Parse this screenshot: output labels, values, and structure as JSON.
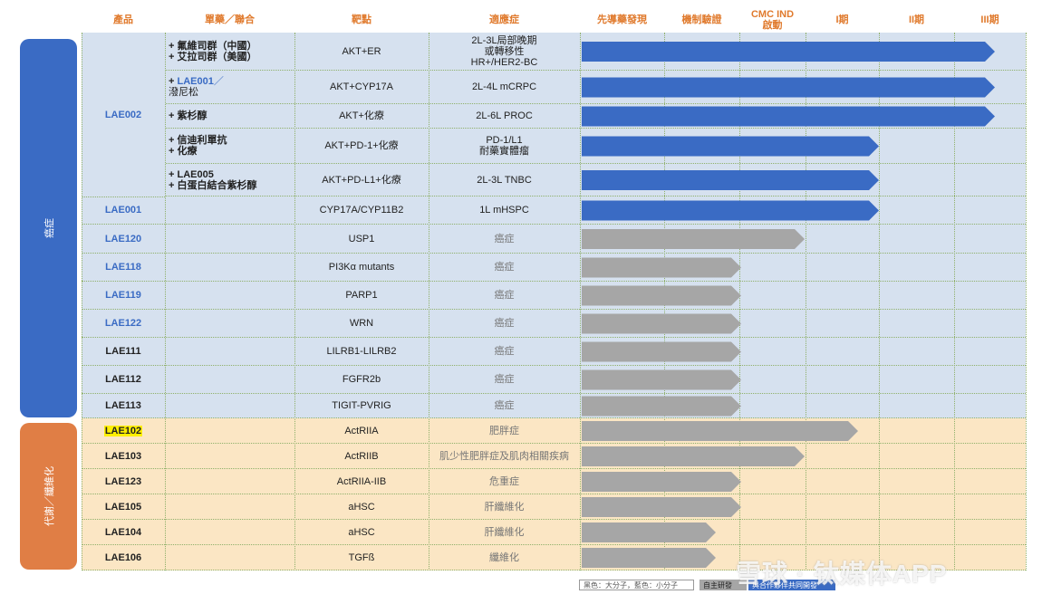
{
  "headers": {
    "product": "產品",
    "combo": "單藥／聯合",
    "target": "靶點",
    "indication": "適應症",
    "discovery": "先導藥發現",
    "mechanism": "機制驗證",
    "cmc_ind": "CMC IND\n啟動",
    "phase1": "I期",
    "phase2": "II期",
    "phase3": "III期"
  },
  "categories": {
    "oncology": "癌症",
    "metabolic": "代謝／纖維化"
  },
  "colors": {
    "blue_arrow": "#3a6bc4",
    "gray_arrow": "#a6a6a6",
    "onc_bg": "#d6e1ef",
    "meta_bg": "#fbe6c4",
    "onc_tab": "#3a6bc4",
    "meta_tab": "#e07e45",
    "header": "#e07a2d"
  },
  "rows": [
    {
      "product": "",
      "product_color": "",
      "combo": [
        {
          "t": "+ 氟維司群（中國）"
        },
        {
          "t": "+ 艾拉司群（美國）"
        }
      ],
      "target": "AKT+ER",
      "indication": "2L-3L局部晚期\n或轉移性\nHR+/HER2-BC",
      "ind_gray": false,
      "progress": "III期",
      "arrow": "blue"
    },
    {
      "product": "",
      "product_color": "",
      "combo": [
        {
          "t": "+ ",
          "b": "LAE001",
          "tail": "／",
          "blue": true
        },
        {
          "t": "潑尼松"
        }
      ],
      "target": "AKT+CYP17A",
      "indication": "2L-4L mCRPC",
      "ind_gray": false,
      "progress": "III期",
      "arrow": "blue"
    },
    {
      "product": "",
      "product_color": "",
      "combo": [
        {
          "t": "+ 紫杉醇"
        }
      ],
      "target": "AKT+化療",
      "indication": "2L-6L PROC",
      "ind_gray": false,
      "progress": "III期",
      "arrow": "blue"
    },
    {
      "product": "",
      "product_color": "",
      "combo": [
        {
          "t": "+ 信迪利單抗"
        },
        {
          "t": "+ 化療"
        }
      ],
      "target": "AKT+PD-1+化療",
      "indication": "PD-1/L1\n耐藥實體瘤",
      "ind_gray": false,
      "progress": "II期",
      "arrow": "blue"
    },
    {
      "product": "",
      "product_color": "",
      "combo": [
        {
          "t": "+ ",
          "b": "LAE005"
        },
        {
          "t": "+ 白蛋白結合紫杉醇"
        }
      ],
      "target": "AKT+PD-L1+化療",
      "indication": "2L-3L TNBC",
      "ind_gray": false,
      "progress": "II期",
      "arrow": "blue"
    },
    {
      "product": "LAE001",
      "product_color": "blue",
      "combo": [],
      "target": "CYP17A/CYP11B2",
      "indication": "1L mHSPC",
      "ind_gray": false,
      "progress": "II期",
      "arrow": "blue"
    },
    {
      "product": "LAE120",
      "product_color": "blue",
      "combo": [],
      "target": "USP1",
      "indication": "癌症",
      "ind_gray": true,
      "progress": "CMC IND 啟動",
      "arrow": "gray"
    },
    {
      "product": "LAE118",
      "product_color": "blue",
      "combo": [],
      "target": "PI3Kα mutants",
      "indication": "癌症",
      "ind_gray": true,
      "progress": "機制驗證",
      "arrow": "gray"
    },
    {
      "product": "LAE119",
      "product_color": "blue",
      "combo": [],
      "target": "PARP1",
      "indication": "癌症",
      "ind_gray": true,
      "progress": "機制驗證",
      "arrow": "gray"
    },
    {
      "product": "LAE122",
      "product_color": "blue",
      "combo": [],
      "target": "WRN",
      "indication": "癌症",
      "ind_gray": true,
      "progress": "機制驗證",
      "arrow": "gray"
    },
    {
      "product": "LAE111",
      "product_color": "black",
      "combo": [],
      "target": "LILRB1-LILRB2",
      "indication": "癌症",
      "ind_gray": true,
      "progress": "機制驗證",
      "arrow": "gray"
    },
    {
      "product": "LAE112",
      "product_color": "black",
      "combo": [],
      "target": "FGFR2b",
      "indication": "癌症",
      "ind_gray": true,
      "progress": "機制驗證",
      "arrow": "gray"
    },
    {
      "product": "LAE113",
      "product_color": "black",
      "combo": [],
      "target": "TIGIT-PVRIG",
      "indication": "癌症",
      "ind_gray": true,
      "progress": "機制驗證",
      "arrow": "gray"
    },
    {
      "product": "LAE102",
      "product_color": "highlight",
      "combo": [],
      "target": "ActRIIA",
      "indication": "肥胖症",
      "ind_gray": true,
      "progress": "I期",
      "arrow": "gray"
    },
    {
      "product": "LAE103",
      "product_color": "black",
      "combo": [],
      "target": "ActRIIB",
      "indication": "肌少性肥胖症及肌肉相關疾病",
      "ind_gray": true,
      "progress": "CMC IND 啟動",
      "arrow": "gray"
    },
    {
      "product": "LAE123",
      "product_color": "black",
      "combo": [],
      "target": "ActRIIA-IIB",
      "indication": "危重症",
      "ind_gray": true,
      "progress": "機制驗證",
      "arrow": "gray"
    },
    {
      "product": "LAE105",
      "product_color": "black",
      "combo": [],
      "target": "aHSC",
      "indication": "肝纖維化",
      "ind_gray": true,
      "progress": "機制驗證",
      "arrow": "gray"
    },
    {
      "product": "LAE104",
      "product_color": "black",
      "combo": [],
      "target": "aHSC",
      "indication": "肝纖維化",
      "ind_gray": true,
      "progress": "先導藥發現",
      "arrow": "gray"
    },
    {
      "product": "LAE106",
      "product_color": "black",
      "combo": [],
      "target": "TGFß",
      "indication": "纖維化",
      "ind_gray": true,
      "progress": "先導藥發現",
      "arrow": "gray"
    }
  ],
  "group_label": "LAE002",
  "legend": {
    "color_key": "黑色：大分子，藍色：小分子",
    "self_dev": "自主研發",
    "partner": "與合作夥伴共同開發"
  },
  "watermark": "雪球 · 钛媒体APP"
}
